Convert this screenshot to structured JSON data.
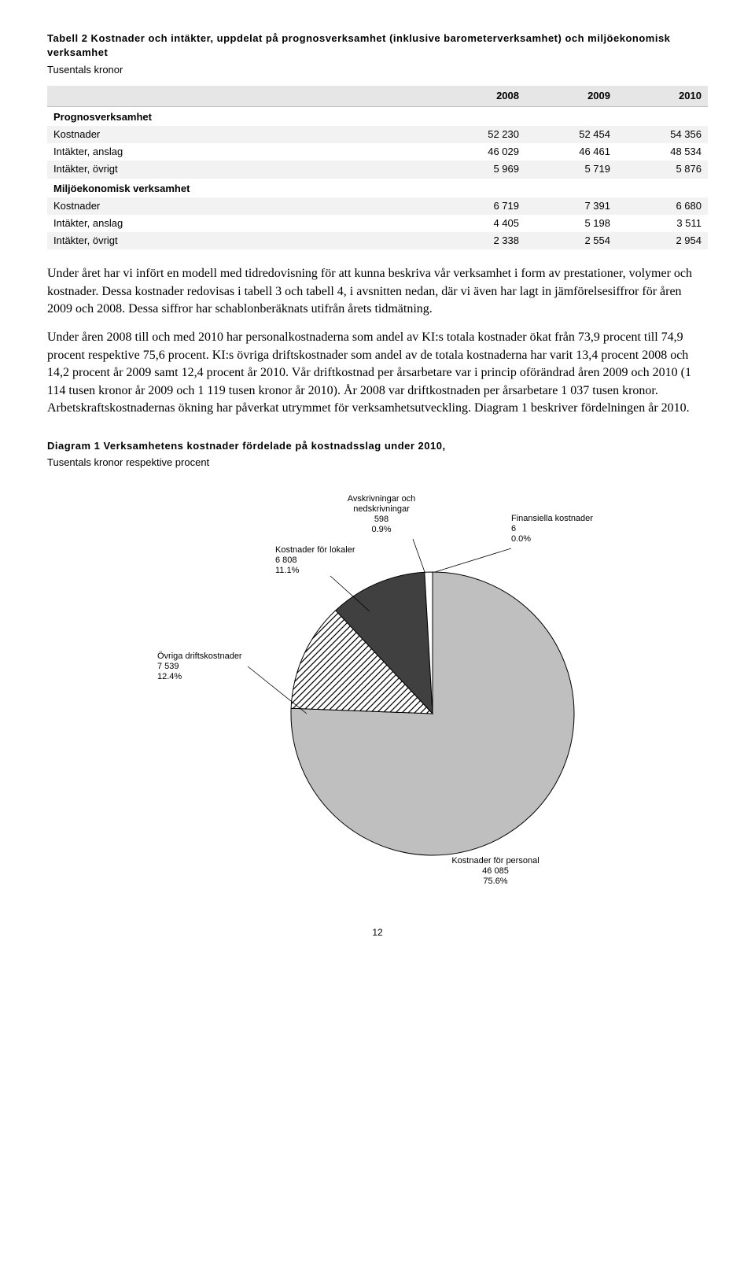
{
  "table2": {
    "title": "Tabell 2 Kostnader och intäkter, uppdelat på prognosverksamhet (inklusive barometerverksamhet) och miljöekonomisk verksamhet",
    "unit": "Tusentals kronor",
    "columns": [
      "",
      "2008",
      "2009",
      "2010"
    ],
    "sections": [
      {
        "name": "Prognosverksamhet",
        "rows": [
          {
            "label": "Kostnader",
            "v": [
              "52 230",
              "52 454",
              "54 356"
            ]
          },
          {
            "label": "Intäkter, anslag",
            "v": [
              "46 029",
              "46 461",
              "48 534"
            ]
          },
          {
            "label": "Intäkter, övrigt",
            "v": [
              "5 969",
              "5 719",
              "5 876"
            ]
          }
        ]
      },
      {
        "name": "Miljöekonomisk verksamhet",
        "rows": [
          {
            "label": "Kostnader",
            "v": [
              "6 719",
              "7 391",
              "6 680"
            ]
          },
          {
            "label": "Intäkter, anslag",
            "v": [
              "4 405",
              "5 198",
              "3 511"
            ]
          },
          {
            "label": "Intäkter, övrigt",
            "v": [
              "2 338",
              "2 554",
              "2 954"
            ]
          }
        ]
      }
    ]
  },
  "para1": "Under året har vi infört en modell med tidredovisning för att kunna beskriva vår verksamhet i form av prestationer, volymer och kostnader. Dessa kostnader redovisas i tabell 3 och tabell 4, i avsnitten nedan, där vi även har lagt in jämförelsesiffror för åren 2009 och 2008. Dessa siffror har schablonberäknats utifrån årets tidmätning.",
  "para2": "Under åren 2008 till och med 2010 har personalkostnaderna som andel av KI:s totala kostnader ökat från 73,9 procent till 74,9 procent respektive 75,6 procent. KI:s övriga driftskostnader som andel av de totala kostnaderna har varit 13,4 procent 2008 och 14,2 procent år 2009 samt 12,4 procent år 2010. Vår driftkostnad per årsarbetare var i princip oförändrad åren 2009 och 2010 (1 114 tusen kronor år 2009 och 1 119 tusen kronor år 2010). År 2008 var driftkostnaden per årsarbetare 1 037 tusen kronor. Arbetskraftskostnadernas ökning har påverkat utrymmet för verksamhetsutveckling. Diagram 1 beskriver fördelningen år 2010.",
  "diagram": {
    "title": "Diagram 1 Verksamhetens kostnader fördelade på kostnadsslag under 2010,",
    "subtitle": "Tusentals kronor respektive procent",
    "type": "pie",
    "background_color": "#ffffff",
    "stroke_color": "#000000",
    "slices": [
      {
        "label": "Kostnader för personal",
        "value": "46 085",
        "pct": "75.6%",
        "fill": "#bfbfbf",
        "hatch": false
      },
      {
        "label": "Övriga driftskostnader",
        "value": "7 539",
        "pct": "12.4%",
        "fill": "#ffffff",
        "hatch": true
      },
      {
        "label": "Kostnader för lokaler",
        "value": "6 808",
        "pct": "11.1%",
        "fill": "#404040",
        "hatch": false
      },
      {
        "label": "Avskrivningar och nedskrivningar",
        "value": "598",
        "pct": "0.9%",
        "fill": "#ffffff",
        "hatch": false
      },
      {
        "label": "Finansiella kostnader",
        "value": "6",
        "pct": "0.0%",
        "fill": "#000000",
        "hatch": false
      }
    ]
  },
  "pageNumber": "12"
}
